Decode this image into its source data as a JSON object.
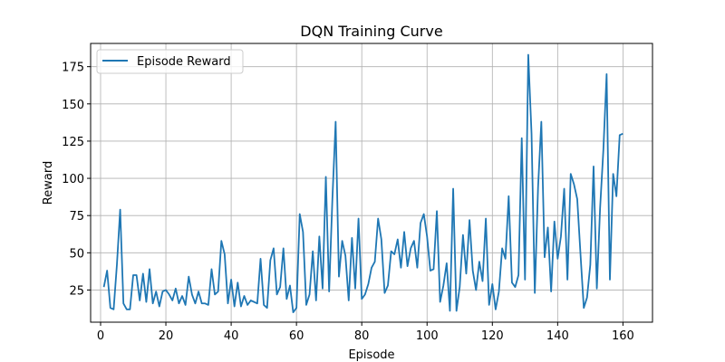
{
  "chart_data": {
    "type": "line",
    "title": "DQN Training Curve",
    "xlabel": "Episode",
    "ylabel": "Reward",
    "xlim": [
      -3.05,
      169.05
    ],
    "ylim": [
      3.4,
      190.6
    ],
    "xticks": [
      0,
      20,
      40,
      60,
      80,
      100,
      120,
      140,
      160
    ],
    "yticks": [
      25,
      50,
      75,
      100,
      125,
      150,
      175
    ],
    "grid": true,
    "legend": {
      "location": "upper left",
      "entries": [
        "Episode Reward"
      ]
    },
    "series": [
      {
        "name": "Episode Reward",
        "color": "#1f77b4",
        "x": [
          1,
          2,
          3,
          4,
          5,
          6,
          7,
          8,
          9,
          10,
          11,
          12,
          13,
          14,
          15,
          16,
          17,
          18,
          19,
          20,
          21,
          22,
          23,
          24,
          25,
          26,
          27,
          28,
          29,
          30,
          31,
          32,
          33,
          34,
          35,
          36,
          37,
          38,
          39,
          40,
          41,
          42,
          43,
          44,
          45,
          46,
          47,
          48,
          49,
          50,
          51,
          52,
          53,
          54,
          55,
          56,
          57,
          58,
          59,
          60,
          61,
          62,
          63,
          64,
          65,
          66,
          67,
          68,
          69,
          70,
          71,
          72,
          73,
          74,
          75,
          76,
          77,
          78,
          79,
          80,
          81,
          82,
          83,
          84,
          85,
          86,
          87,
          88,
          89,
          90,
          91,
          92,
          93,
          94,
          95,
          96,
          97,
          98,
          99,
          100,
          101,
          102,
          103,
          104,
          105,
          106,
          107,
          108,
          109,
          110,
          111,
          112,
          113,
          114,
          115,
          116,
          117,
          118,
          119,
          120,
          121,
          122,
          123,
          124,
          125,
          126,
          127,
          128,
          129,
          130,
          131,
          132,
          133,
          134,
          135,
          136,
          137,
          138,
          139,
          140,
          141,
          142,
          143,
          144,
          145,
          146,
          147,
          148,
          149,
          150,
          151,
          152,
          153,
          154,
          155,
          156,
          157,
          158,
          159,
          160
        ],
        "y": [
          27,
          38,
          13,
          12,
          42,
          79,
          16,
          12,
          12,
          35,
          35,
          18,
          36,
          17,
          39,
          16,
          24,
          14,
          24,
          25,
          22,
          18,
          26,
          16,
          21,
          15,
          34,
          22,
          16,
          24,
          16,
          16,
          15,
          39,
          22,
          24,
          58,
          49,
          16,
          32,
          14,
          30,
          14,
          21,
          15,
          18,
          17,
          16,
          46,
          15,
          13,
          45,
          53,
          22,
          27,
          53,
          19,
          28,
          10,
          13,
          76,
          64,
          15,
          22,
          51,
          18,
          61,
          26,
          101,
          24,
          86,
          138,
          34,
          58,
          48,
          18,
          60,
          26,
          73,
          19,
          22,
          29,
          40,
          44,
          73,
          59,
          23,
          28,
          51,
          49,
          59,
          40,
          64,
          41,
          53,
          58,
          40,
          70,
          76,
          61,
          38,
          39,
          78,
          17,
          28,
          43,
          11,
          93,
          11,
          27,
          62,
          36,
          72,
          38,
          25,
          44,
          31,
          73,
          15,
          29,
          12,
          24,
          53,
          46,
          88,
          30,
          27,
          35,
          127,
          32,
          183,
          130,
          23,
          94,
          138,
          47,
          67,
          24,
          71,
          46,
          61,
          93,
          32,
          103,
          96,
          86,
          49,
          13,
          20,
          42,
          108,
          26,
          80,
          119,
          170,
          32,
          103,
          88,
          129,
          130
        ]
      }
    ]
  }
}
